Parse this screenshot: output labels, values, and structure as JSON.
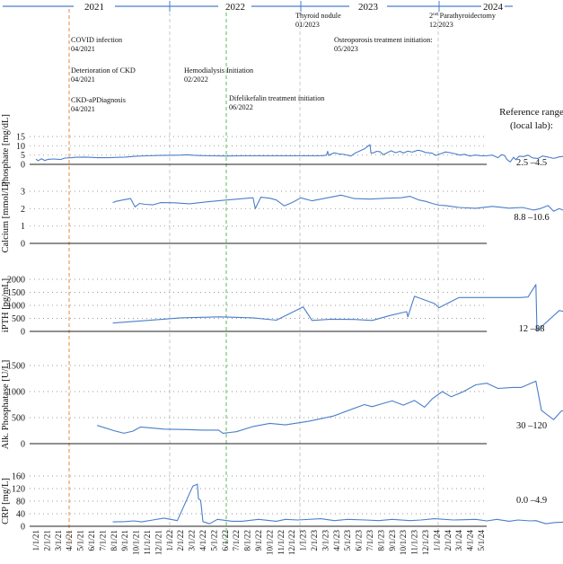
{
  "years": [
    "2021",
    "2022",
    "2023",
    "2024"
  ],
  "months": [
    "1/1/21",
    "2/1/21",
    "3/1/21",
    "4/1/21",
    "5/1/21",
    "6/1/21",
    "7/1/21",
    "8/1/21",
    "9/1/21",
    "10/1/21",
    "11/1/21",
    "12/1/21",
    "1/1/22",
    "2/1/22",
    "3/1/22",
    "4/1/22",
    "5/1/22",
    "6/1/22",
    "7/1/22",
    "8/1/22",
    "9/1/22",
    "10/1/22",
    "11/1/22",
    "12/1/22",
    "1/1/23",
    "2/1/23",
    "3/1/23",
    "4/1/23",
    "5/1/23",
    "6/1/23",
    "7/1/23",
    "8/1/23",
    "9/1/23",
    "10/1/23",
    "11/1/23",
    "12/1/23",
    "1/1/24",
    "2/1/24",
    "3/1/24",
    "4/1/24",
    "5/1/24"
  ],
  "events": [
    {
      "label": "COVID infection",
      "date": "04/2021"
    },
    {
      "label": "Deterioration of CKD",
      "date": "04/2021"
    },
    {
      "label": "CKD-aPDiagnosis",
      "date": "04/2021"
    },
    {
      "label": "Hemodialysis Initiation",
      "date": "02/2022"
    },
    {
      "label": "Difelikefalin treatment initiation",
      "date": "06/2022"
    },
    {
      "label": "Thyroid nodule",
      "date": "01/2023"
    },
    {
      "label": "Osteoporosis treatment initiation:",
      "date": "05/2023"
    },
    {
      "label_prefix": "2",
      "label_sup": "nd",
      "label": " Parathyroidectomy",
      "date": "12/2023"
    }
  ],
  "reference_header": {
    "line1": "Reference range",
    "line2": "(local lab):"
  },
  "chart_data": {
    "type": "line",
    "x_unit": "months since 1/1/21",
    "panels": [
      {
        "id": "phosphate",
        "ylabel": "Phosphate [mg/dL]",
        "ylim": [
          0,
          15
        ],
        "ticks": [
          "0",
          "5",
          "10",
          "15"
        ],
        "tick_values": [
          0,
          5,
          10,
          15
        ],
        "reference": "2.5 –4.5",
        "points": [
          [
            0,
            2.8
          ],
          [
            0.2,
            2.0
          ],
          [
            0.5,
            3.0
          ],
          [
            0.8,
            2.1
          ],
          [
            1.1,
            2.7
          ],
          [
            1.6,
            2.9
          ],
          [
            2.2,
            2.6
          ],
          [
            2.6,
            3.4
          ],
          [
            3.2,
            3.6
          ],
          [
            3.6,
            3.8
          ],
          [
            4.5,
            3.9
          ],
          [
            5.5,
            3.6
          ],
          [
            6.5,
            3.6
          ],
          [
            8,
            3.9
          ],
          [
            9,
            4.4
          ],
          [
            10,
            4.6
          ],
          [
            11,
            4.8
          ],
          [
            12,
            4.9
          ],
          [
            13,
            5.0
          ],
          [
            13.6,
            5.2
          ],
          [
            14.2,
            4.9
          ],
          [
            15,
            4.7
          ],
          [
            16,
            4.6
          ],
          [
            17,
            4.5
          ],
          [
            18.5,
            4.6
          ],
          [
            20,
            4.6
          ],
          [
            22,
            4.6
          ],
          [
            24,
            4.6
          ],
          [
            25,
            4.6
          ],
          [
            25.8,
            4.7
          ],
          [
            26.1,
            5.0
          ],
          [
            26.2,
            7.0
          ],
          [
            26.3,
            4.8
          ],
          [
            26.5,
            5.5
          ],
          [
            26.8,
            6.2
          ],
          [
            27.2,
            5.6
          ],
          [
            27.7,
            5.3
          ],
          [
            28.3,
            4.5
          ],
          [
            28.7,
            6.2
          ],
          [
            29.5,
            8.3
          ],
          [
            30.0,
            10.6
          ],
          [
            30.1,
            6.0
          ],
          [
            30.3,
            6.2
          ],
          [
            30.6,
            7.0
          ],
          [
            30.9,
            6.8
          ],
          [
            31.2,
            5.2
          ],
          [
            31.6,
            6.4
          ],
          [
            31.9,
            7.3
          ],
          [
            32.3,
            6.3
          ],
          [
            32.7,
            7.0
          ],
          [
            33.0,
            6.1
          ],
          [
            33.4,
            7.1
          ],
          [
            33.8,
            6.6
          ],
          [
            34.3,
            7.6
          ],
          [
            34.6,
            7.3
          ],
          [
            35.0,
            6.4
          ],
          [
            35.6,
            6.0
          ],
          [
            35.9,
            4.8
          ],
          [
            36.3,
            5.6
          ],
          [
            36.8,
            6.7
          ],
          [
            37.2,
            6.3
          ],
          [
            37.7,
            5.6
          ],
          [
            38.1,
            5.0
          ],
          [
            38.5,
            5.4
          ],
          [
            39.0,
            4.4
          ],
          [
            39.3,
            4.9
          ],
          [
            39.5,
            5.0
          ],
          [
            40.0,
            4.6
          ],
          [
            40.4,
            4.6
          ],
          [
            41.0,
            5.0
          ],
          [
            41.5,
            3.6
          ],
          [
            41.8,
            5.2
          ],
          [
            42.1,
            4.8
          ],
          [
            42.3,
            2.6
          ],
          [
            42.6,
            1.3
          ],
          [
            42.9,
            3.8
          ],
          [
            43.1,
            2.5
          ],
          [
            43.4,
            4.4
          ],
          [
            43.8,
            4.2
          ],
          [
            44.2,
            5.0
          ],
          [
            44.6,
            3.5
          ],
          [
            45.1,
            3.2
          ],
          [
            45.5,
            4.5
          ],
          [
            46.0,
            3.9
          ],
          [
            46.5,
            3.2
          ],
          [
            47.0,
            4.0
          ],
          [
            47.5,
            4.4
          ],
          [
            48,
            3.3
          ],
          [
            49,
            3.3
          ]
        ]
      },
      {
        "id": "calcium",
        "ylabel": "Calcium [mmol/L]",
        "ylim": [
          0,
          3
        ],
        "ticks": [
          "0",
          "1",
          "2",
          "3"
        ],
        "tick_values": [
          0,
          1,
          2,
          3
        ],
        "reference": "8.8 –10.6",
        "points": [
          [
            6.9,
            2.35
          ],
          [
            7.2,
            2.42
          ],
          [
            7.8,
            2.5
          ],
          [
            8.5,
            2.58
          ],
          [
            8.9,
            2.1
          ],
          [
            9.3,
            2.3
          ],
          [
            9.8,
            2.25
          ],
          [
            10.5,
            2.22
          ],
          [
            11.2,
            2.35
          ],
          [
            12.4,
            2.34
          ],
          [
            13.8,
            2.28
          ],
          [
            15.5,
            2.4
          ],
          [
            17.5,
            2.52
          ],
          [
            19.5,
            2.63
          ],
          [
            19.7,
            2.0
          ],
          [
            20.2,
            2.66
          ],
          [
            21.0,
            2.6
          ],
          [
            21.6,
            2.5
          ],
          [
            22.3,
            2.16
          ],
          [
            23.0,
            2.35
          ],
          [
            23.8,
            2.62
          ],
          [
            24.8,
            2.45
          ],
          [
            26.0,
            2.6
          ],
          [
            27.4,
            2.78
          ],
          [
            28.6,
            2.58
          ],
          [
            30.0,
            2.55
          ],
          [
            31.5,
            2.6
          ],
          [
            32.8,
            2.63
          ],
          [
            33.6,
            2.71
          ],
          [
            34.4,
            2.5
          ],
          [
            35.0,
            2.42
          ],
          [
            35.6,
            2.3
          ],
          [
            36.2,
            2.2
          ],
          [
            36.8,
            2.18
          ],
          [
            38.0,
            2.07
          ],
          [
            39.5,
            2.02
          ],
          [
            41.0,
            2.13
          ],
          [
            42.5,
            2.03
          ],
          [
            43.7,
            2.07
          ],
          [
            44.7,
            1.92
          ],
          [
            45.3,
            2.0
          ],
          [
            46.0,
            2.18
          ],
          [
            46.5,
            1.85
          ],
          [
            47.0,
            2.0
          ],
          [
            47.6,
            1.85
          ],
          [
            48.0,
            1.78
          ],
          [
            49,
            1.75
          ]
        ]
      },
      {
        "id": "ipth",
        "ylabel": "iPTH [pg/mL]",
        "ylim": [
          0,
          2000
        ],
        "ticks": [
          "0",
          "500",
          "1000",
          "1500",
          "2000"
        ],
        "tick_values": [
          0,
          500,
          1000,
          1500,
          2000
        ],
        "reference": "12 –88",
        "points": [
          [
            6.9,
            320
          ],
          [
            10,
            420
          ],
          [
            13,
            520
          ],
          [
            16.5,
            560
          ],
          [
            19.5,
            520
          ],
          [
            21.6,
            430
          ],
          [
            24,
            940
          ],
          [
            24.8,
            420
          ],
          [
            26.5,
            470
          ],
          [
            28.6,
            460
          ],
          [
            30.2,
            420
          ],
          [
            31.8,
            610
          ],
          [
            33.3,
            760
          ],
          [
            33.4,
            560
          ],
          [
            34.0,
            1350
          ],
          [
            35.8,
            1070
          ],
          [
            36.2,
            910
          ],
          [
            38.0,
            1300
          ],
          [
            39.5,
            1300
          ],
          [
            42,
            1300
          ],
          [
            43.5,
            1300
          ],
          [
            44.2,
            1320
          ],
          [
            44.9,
            1800
          ],
          [
            45.0,
            20
          ],
          [
            47.0,
            800
          ],
          [
            48.0,
            720
          ]
        ]
      },
      {
        "id": "alp",
        "ylabel": "Alk. Phosphatase [U/L]",
        "ylim": [
          0,
          1500
        ],
        "ticks": [
          "0",
          "500",
          "1000",
          "1500"
        ],
        "tick_values": [
          0,
          500,
          1000,
          1500
        ],
        "reference": "30 –120",
        "points": [
          [
            5.5,
            350
          ],
          [
            7.0,
            250
          ],
          [
            7.9,
            200
          ],
          [
            8.7,
            240
          ],
          [
            9.4,
            320
          ],
          [
            11.5,
            280
          ],
          [
            13.5,
            270
          ],
          [
            15.0,
            260
          ],
          [
            16.4,
            260
          ],
          [
            16.8,
            200
          ],
          [
            18.0,
            230
          ],
          [
            19.5,
            330
          ],
          [
            21.0,
            390
          ],
          [
            22.4,
            360
          ],
          [
            24.5,
            430
          ],
          [
            26.7,
            530
          ],
          [
            29.5,
            750
          ],
          [
            30.2,
            710
          ],
          [
            31.0,
            760
          ],
          [
            32.0,
            820
          ],
          [
            33.0,
            740
          ],
          [
            34.0,
            830
          ],
          [
            34.9,
            700
          ],
          [
            35.6,
            860
          ],
          [
            36.5,
            1000
          ],
          [
            37.3,
            900
          ],
          [
            38.4,
            1000
          ],
          [
            39.5,
            1130
          ],
          [
            40.5,
            1160
          ],
          [
            41.5,
            1060
          ],
          [
            42.8,
            1080
          ],
          [
            43.6,
            1080
          ],
          [
            44.9,
            1200
          ],
          [
            45.4,
            640
          ],
          [
            46.5,
            460
          ],
          [
            47.2,
            630
          ],
          [
            48,
            640
          ]
        ]
      },
      {
        "id": "crp",
        "ylabel": "CRP [mg/L]",
        "ylim": [
          0,
          160
        ],
        "ticks": [
          "0",
          "40",
          "80",
          "120",
          "160"
        ],
        "tick_values": [
          0,
          40,
          80,
          120,
          160
        ],
        "reference": "0.0 –4.9",
        "points": [
          [
            6.9,
            14
          ],
          [
            8,
            15
          ],
          [
            8.8,
            17
          ],
          [
            9.5,
            14
          ],
          [
            10.5,
            20
          ],
          [
            11.5,
            26
          ],
          [
            12.7,
            18
          ],
          [
            14.1,
            128
          ],
          [
            14.5,
            134
          ],
          [
            14.6,
            88
          ],
          [
            14.8,
            82
          ],
          [
            15.0,
            15
          ],
          [
            15.6,
            8
          ],
          [
            16.3,
            22
          ],
          [
            17.6,
            16
          ],
          [
            18.5,
            16
          ],
          [
            20.0,
            22
          ],
          [
            21.6,
            16
          ],
          [
            22.4,
            22
          ],
          [
            23.5,
            20
          ],
          [
            25.6,
            24
          ],
          [
            26.8,
            18
          ],
          [
            28,
            22
          ],
          [
            29.6,
            20
          ],
          [
            30.8,
            18
          ],
          [
            32,
            22
          ],
          [
            33.6,
            18
          ],
          [
            34.6,
            20
          ],
          [
            35.8,
            24
          ],
          [
            37.5,
            20
          ],
          [
            39.5,
            22
          ],
          [
            40.5,
            17
          ],
          [
            41.4,
            22
          ],
          [
            42.5,
            16
          ],
          [
            43.3,
            20
          ],
          [
            44.4,
            17
          ],
          [
            44.9,
            18
          ],
          [
            45.8,
            8
          ],
          [
            46.6,
            12
          ],
          [
            48,
            14
          ],
          [
            49,
            13
          ]
        ]
      }
    ]
  }
}
